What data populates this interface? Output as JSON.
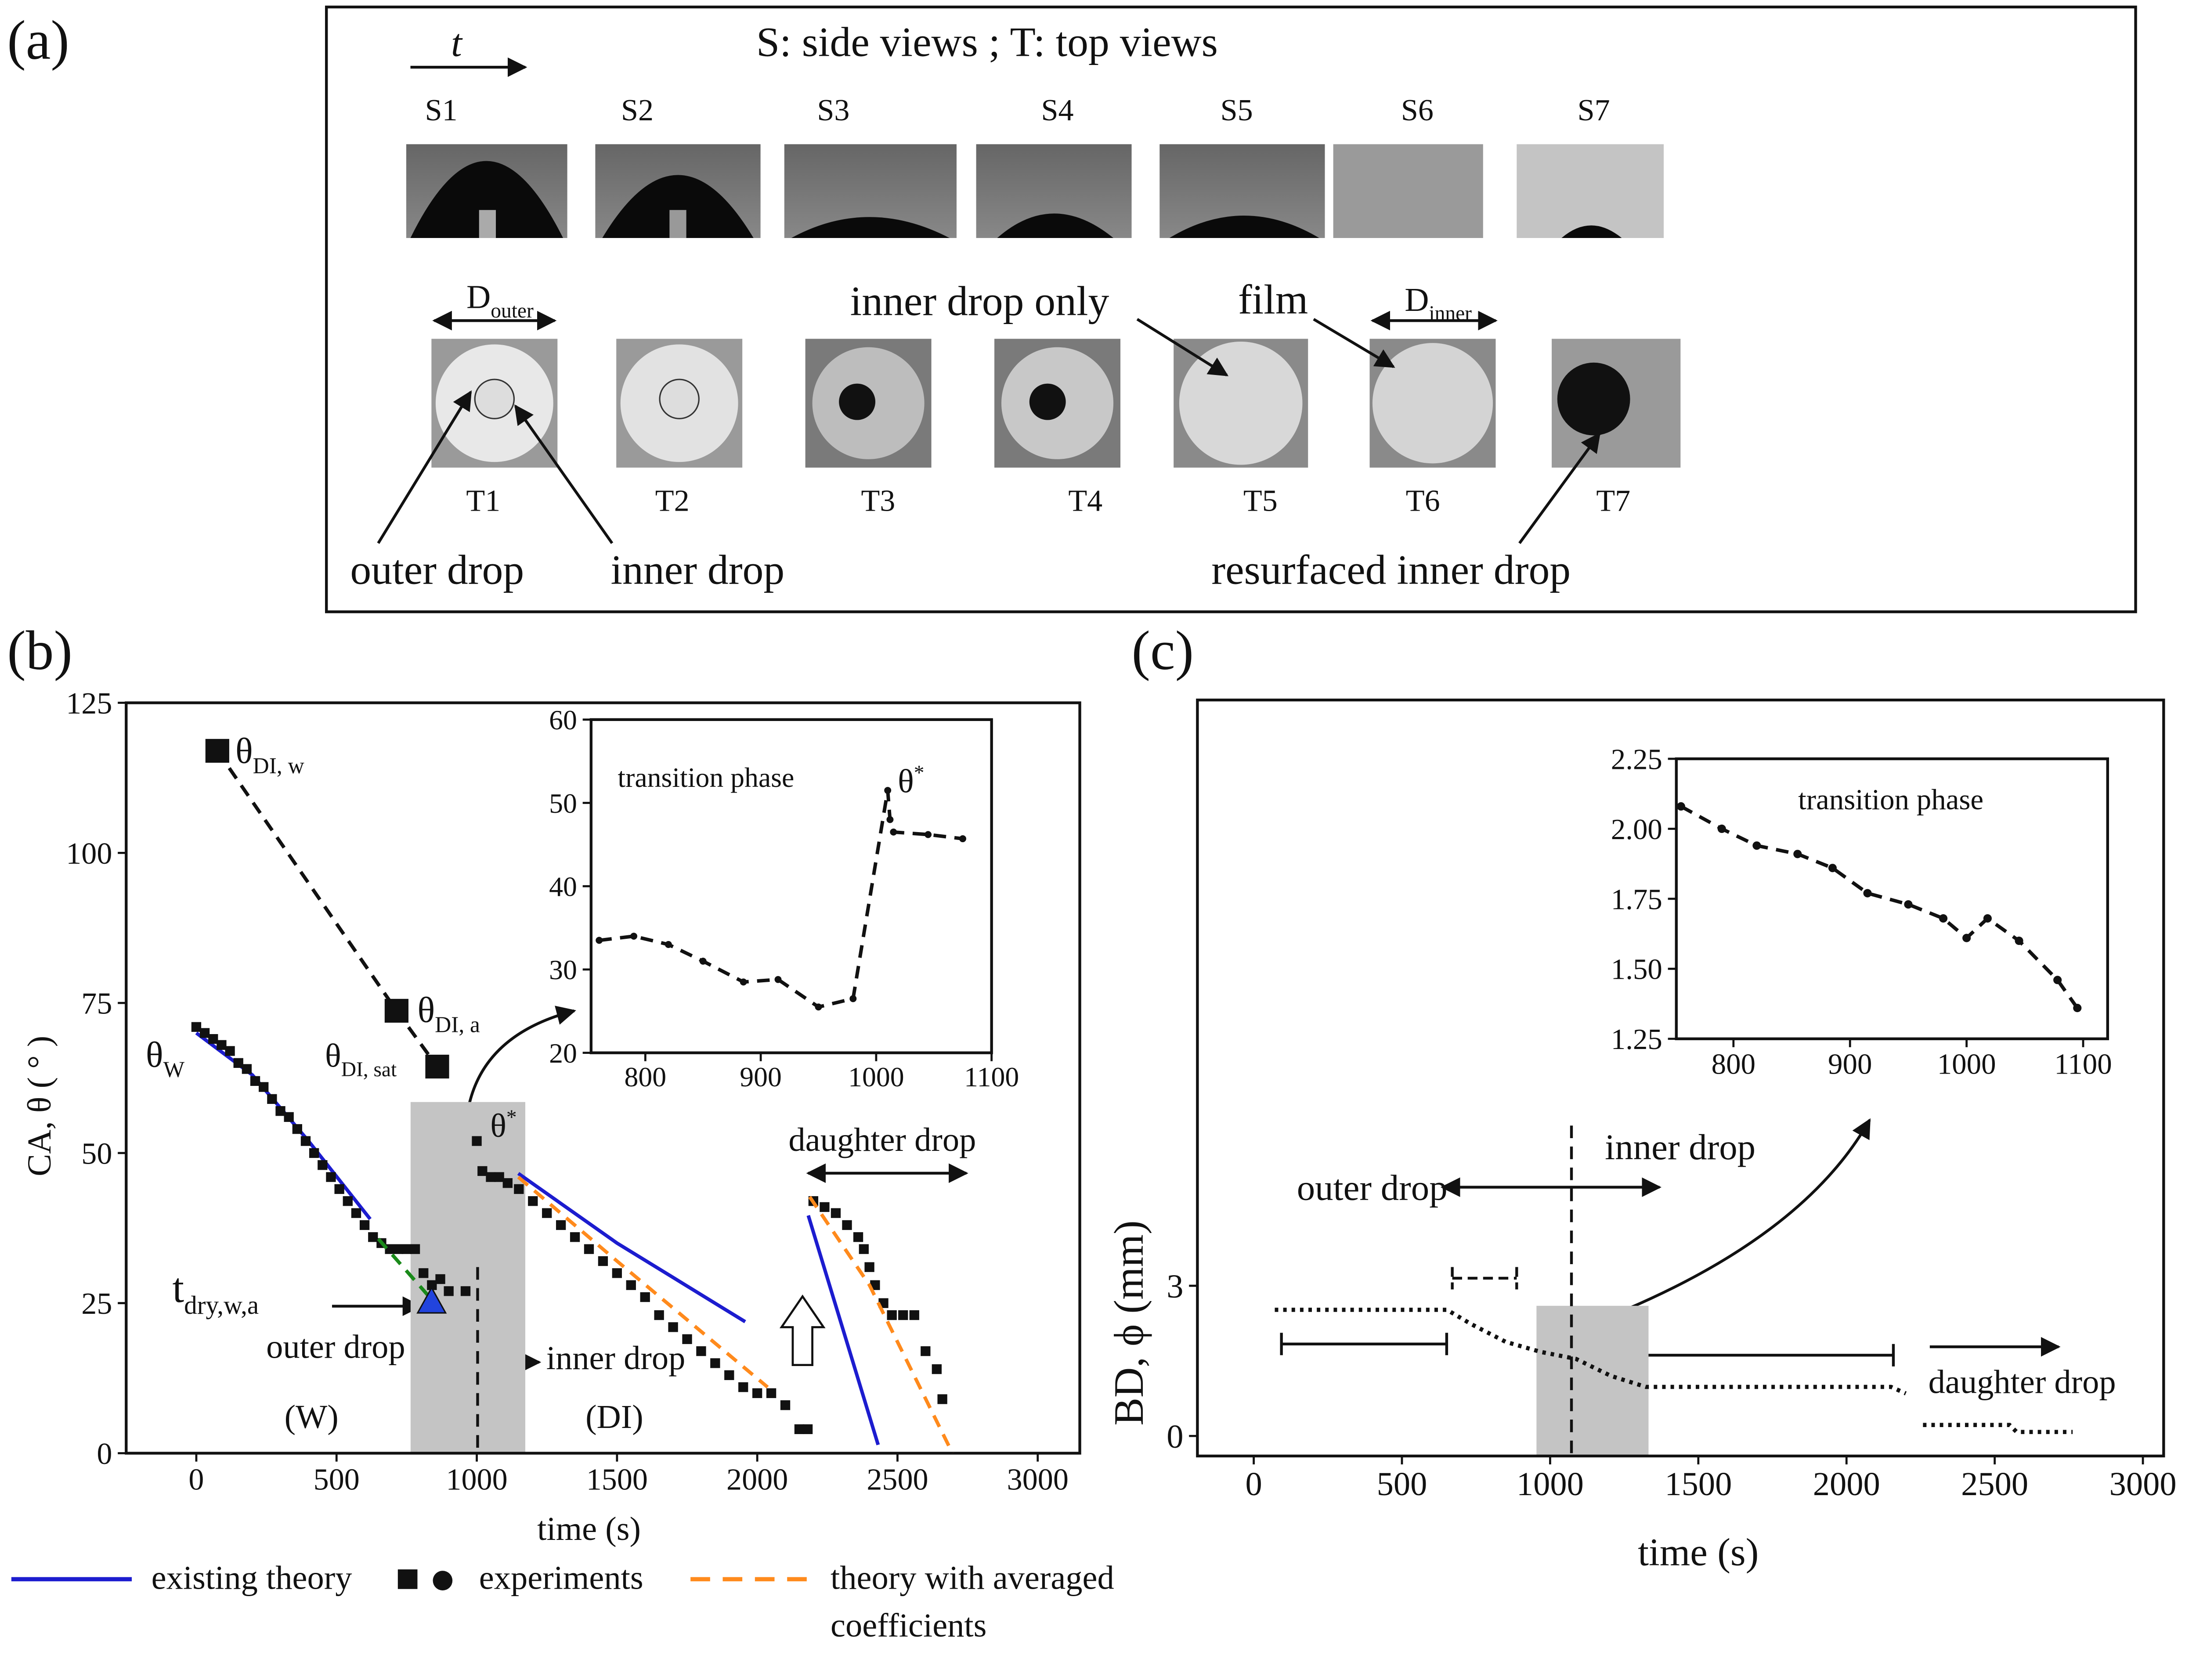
{
  "panel_a": {
    "label": "(a)",
    "time_symbol": "t",
    "title": "S: side views ; T: top views",
    "side_labels": [
      "S1",
      "S2",
      "S3",
      "S4",
      "S5",
      "S6",
      "S7"
    ],
    "top_labels": [
      "T1",
      "T2",
      "T3",
      "T4",
      "T5",
      "T6",
      "T7"
    ],
    "annotations": [
      {
        "text": "D",
        "sub": "outer"
      },
      {
        "text": "inner drop only"
      },
      {
        "text": "film"
      },
      {
        "text": "D",
        "sub": "inner"
      },
      {
        "text": "outer drop"
      },
      {
        "text": "inner drop"
      },
      {
        "text": "resurfaced inner drop"
      }
    ]
  },
  "chart_data": [
    {
      "type": "line",
      "panel_label": "(b)",
      "xlabel": "time (s)",
      "ylabel": "CA, θ ( ° )",
      "xlim": [
        -250,
        3150
      ],
      "ylim": [
        0,
        125
      ],
      "xticks": [
        0,
        500,
        1000,
        1500,
        2000,
        2500,
        3000
      ],
      "yticks": [
        0,
        25,
        50,
        75,
        100,
        125
      ],
      "highlight": {
        "xrange": [
          764,
          1173
        ],
        "ytop": 58.5
      },
      "vline": {
        "x": 1003,
        "ytop": 31
      },
      "series": [
        {
          "name": "existing theory",
          "color": "#1c1ccf",
          "style": "solid",
          "marker": "none",
          "x": [
            0,
            200,
            400,
            620,
            null,
            1148,
            1500,
            1957,
            null,
            2182,
            2431
          ],
          "values": [
            70,
            63,
            52,
            39,
            null,
            46.6,
            35,
            21.9,
            null,
            39.6,
            1.4
          ]
        },
        {
          "name": "experiments",
          "color": "#111111",
          "style": "none",
          "marker": "square",
          "x": [
            0,
            30,
            60,
            90,
            120,
            150,
            180,
            210,
            240,
            270,
            300,
            330,
            360,
            390,
            420,
            450,
            480,
            510,
            540,
            570,
            600,
            630,
            660,
            690,
            720,
            750,
            780,
            810,
            840,
            870,
            900,
            960,
            1000,
            1020,
            1050,
            1080,
            1110,
            1150,
            1200,
            1250,
            1300,
            1350,
            1400,
            1450,
            1500,
            1550,
            1600,
            1650,
            1700,
            1750,
            1800,
            1850,
            1900,
            1950,
            2000,
            2050,
            2100,
            2150,
            2180,
            2200,
            2240,
            2280,
            2320,
            2360,
            2380,
            2400,
            2420,
            2450,
            2480,
            2520,
            2560,
            2600,
            2640,
            2660
          ],
          "values": [
            71,
            70,
            69,
            68,
            67,
            65,
            64,
            62,
            61,
            59,
            57,
            56,
            54,
            52,
            50,
            48,
            46,
            44,
            42,
            40,
            38,
            36,
            35,
            34,
            34,
            34,
            34,
            30,
            28,
            29,
            27,
            27,
            52,
            47,
            46,
            46,
            45,
            44,
            42,
            40,
            38,
            36,
            34,
            32,
            30,
            28,
            26,
            23,
            21,
            19,
            17,
            15,
            13,
            11,
            10,
            10,
            8,
            4,
            4,
            42,
            41,
            40,
            38,
            36,
            34,
            31,
            28,
            25,
            23,
            23,
            23,
            17,
            14,
            9
          ]
        },
        {
          "name": "theory with averaged coefficients",
          "color": "#ff8a1c",
          "style": "dashed",
          "marker": "none",
          "x": [
            1148,
            1500,
            2037,
            null,
            2187,
            2400,
            2696
          ],
          "values": [
            46,
            32,
            11,
            null,
            42.7,
            28,
            0
          ]
        },
        {
          "color": "#111111",
          "style": "dashed",
          "marker": "square",
          "x": [
            75,
            714,
            859
          ],
          "values": [
            117,
            73.7,
            64.4
          ]
        },
        {
          "color": "#1a8a1a",
          "style": "dashed",
          "marker": "none",
          "x": [
            649,
            824
          ],
          "values": [
            35.7,
            26.4
          ]
        },
        {
          "color": "#2244dd",
          "style": "none",
          "marker": "triangle",
          "x": [
            839
          ],
          "values": [
            25
          ]
        }
      ],
      "annotations": [
        {
          "text": "θ",
          "sub": "W"
        },
        {
          "text": "θ",
          "sub": "DI, w"
        },
        {
          "text": "θ",
          "sub": "DI, a"
        },
        {
          "text": "θ",
          "sub": "DI, sat"
        },
        {
          "text": "θ",
          "sup": "*"
        },
        {
          "text": "t",
          "sub": "dry,w,a"
        },
        {
          "text": "outer drop"
        },
        {
          "text": "(W)"
        },
        {
          "text": "inner drop"
        },
        {
          "text": "(DI)"
        },
        {
          "text": "daughter drop"
        }
      ]
    },
    {
      "type": "line",
      "xlim": [
        753,
        1100
      ],
      "ylim": [
        20,
        60
      ],
      "xticks": [
        800,
        900,
        1000,
        1100
      ],
      "yticks": [
        20,
        30,
        40,
        50,
        60
      ],
      "series": [
        {
          "color": "#111111",
          "style": "dashed",
          "marker": "circle",
          "x": [
            760,
            790,
            820,
            850,
            885,
            915,
            950,
            980,
            1010,
            1012,
            1015,
            1045,
            1075
          ],
          "values": [
            33.5,
            34,
            33,
            31,
            28.5,
            28.8,
            25.5,
            26.5,
            51.5,
            48,
            46.5,
            46.2,
            45.7
          ]
        }
      ],
      "annotations": [
        {
          "text": "transition phase"
        },
        {
          "text": "θ",
          "sup": "*"
        }
      ]
    },
    {
      "type": "line",
      "panel_label": "(c)",
      "xlabel": "time (s)",
      "ylabel": "BD, ϕ (mm)",
      "xlim": [
        -190,
        3070
      ],
      "ylim": [
        -0.4,
        14.7
      ],
      "xticks": [
        0,
        500,
        1000,
        1500,
        2000,
        2500,
        3000
      ],
      "yticks": [
        0,
        3
      ],
      "highlight": {
        "xrange": [
          954,
          1332
        ],
        "ytop": 2.6
      },
      "vline": {
        "x": 1072,
        "ytop": 6.2
      },
      "series": [
        {
          "color": "#111111",
          "style": "dotted",
          "marker": "none",
          "x": [
            71,
            652,
            732,
            850,
            968,
            1087,
            1205,
            1323,
            1440,
            2150,
            2200,
            null,
            2258,
            2550,
            2574,
            2763
          ],
          "values": [
            2.52,
            2.52,
            2.24,
            1.88,
            1.68,
            1.54,
            1.2,
            0.98,
            0.98,
            0.98,
            0.85,
            null,
            0.22,
            0.22,
            0.08,
            0.08
          ]
        }
      ],
      "annotations": [
        {
          "text": "outer drop"
        },
        {
          "text": "inner drop"
        },
        {
          "text": "daughter drop"
        }
      ]
    },
    {
      "type": "line",
      "xlim": [
        751,
        1121
      ],
      "ylim": [
        1.25,
        2.25
      ],
      "xticks": [
        800,
        900,
        1000,
        1100
      ],
      "yticks": [
        1.25,
        {
          "value": 1.5,
          "label": "1.50"
        },
        1.75,
        {
          "value": 2,
          "label": "2.00"
        },
        2.25
      ],
      "series": [
        {
          "color": "#111111",
          "style": "dashed",
          "marker": "circle",
          "x": [
            755,
            790,
            820,
            855,
            885,
            915,
            950,
            980,
            1000,
            1018,
            1045,
            1078,
            1095
          ],
          "values": [
            2.08,
            2.0,
            1.94,
            1.91,
            1.86,
            1.77,
            1.73,
            1.68,
            1.61,
            1.68,
            1.6,
            1.46,
            1.36
          ]
        }
      ],
      "annotations": [
        {
          "text": "transition phase"
        }
      ]
    }
  ]
}
